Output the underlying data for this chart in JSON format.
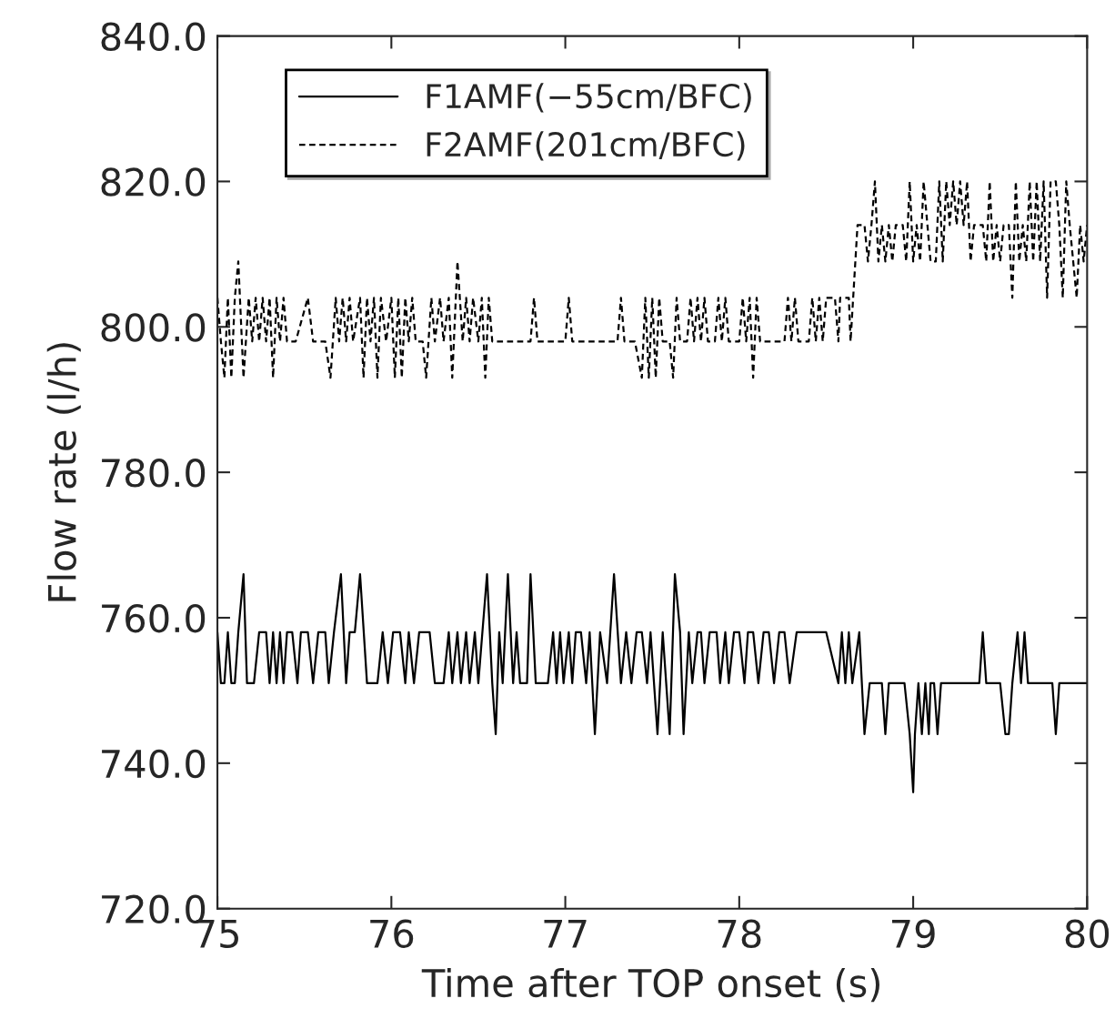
{
  "chart_data": {
    "type": "line",
    "xlabel": "Time after TOP onset (s)",
    "ylabel": "Flow rate (l/h)",
    "xlim": [
      75,
      80
    ],
    "xticks": [
      75,
      76,
      77,
      78,
      79,
      80
    ],
    "ylim": [
      720,
      840
    ],
    "yticks": [
      {
        "value": 720,
        "label": "720.0"
      },
      {
        "value": 740,
        "label": "740.0"
      },
      {
        "value": 760,
        "label": "760.0"
      },
      {
        "value": 780,
        "label": "780.0"
      },
      {
        "value": 800,
        "label": "800.0"
      },
      {
        "value": 820,
        "label": "820.0"
      },
      {
        "value": 840,
        "label": "840.0"
      }
    ],
    "grid": false,
    "legend": "top left",
    "series": [
      {
        "name": "F1AMF(−55cm/BFC)",
        "color": "#000000",
        "line_style": "solid",
        "x": [
          75.0,
          75.02,
          75.04,
          75.06,
          75.08,
          75.1,
          75.12,
          75.15,
          75.17,
          75.21,
          75.24,
          75.28,
          75.3,
          75.32,
          75.34,
          75.36,
          75.38,
          75.4,
          75.43,
          75.46,
          75.48,
          75.52,
          75.55,
          75.58,
          75.62,
          75.64,
          75.67,
          75.71,
          75.74,
          75.76,
          75.79,
          75.82,
          75.86,
          75.92,
          75.95,
          75.98,
          76.01,
          76.05,
          76.08,
          76.1,
          76.13,
          76.16,
          76.22,
          76.25,
          76.3,
          76.33,
          76.35,
          76.38,
          76.4,
          76.43,
          76.45,
          76.48,
          76.5,
          76.55,
          76.58,
          76.6,
          76.62,
          76.64,
          76.67,
          76.7,
          76.72,
          76.74,
          76.78,
          76.8,
          76.83,
          76.9,
          76.93,
          76.95,
          76.97,
          76.99,
          77.02,
          77.04,
          77.06,
          77.09,
          77.12,
          77.14,
          77.17,
          77.2,
          77.24,
          77.28,
          77.32,
          77.35,
          77.38,
          77.41,
          77.44,
          77.47,
          77.49,
          77.53,
          77.56,
          77.6,
          77.63,
          77.66,
          77.68,
          77.71,
          77.73,
          77.76,
          77.78,
          77.8,
          77.83,
          77.87,
          77.89,
          77.92,
          77.94,
          77.97,
          78.0,
          78.03,
          78.05,
          78.08,
          78.11,
          78.14,
          78.17,
          78.2,
          78.23,
          78.26,
          78.29,
          78.33,
          78.5,
          78.57,
          78.59,
          78.61,
          78.63,
          78.65,
          78.69,
          78.72,
          78.75,
          78.82,
          78.84,
          78.86,
          78.95,
          78.98,
          79.0,
          79.01,
          79.03,
          79.05,
          79.07,
          79.09,
          79.1,
          79.12,
          79.14,
          79.16,
          79.38,
          79.4,
          79.42,
          79.5,
          79.53,
          79.55,
          79.57,
          79.6,
          79.62,
          79.64,
          79.66,
          79.8,
          79.82,
          79.84,
          80.0
        ],
        "values": [
          758,
          751,
          751,
          758,
          751,
          751,
          758,
          766,
          751,
          751,
          758,
          758,
          751,
          758,
          751,
          758,
          751,
          758,
          758,
          751,
          758,
          758,
          751,
          758,
          758,
          751,
          758,
          766,
          751,
          758,
          758,
          766,
          751,
          751,
          758,
          751,
          758,
          758,
          751,
          758,
          751,
          758,
          758,
          751,
          751,
          758,
          751,
          758,
          751,
          758,
          751,
          758,
          751,
          766,
          751,
          744,
          758,
          751,
          766,
          751,
          758,
          751,
          751,
          766,
          751,
          751,
          758,
          751,
          758,
          751,
          758,
          751,
          758,
          758,
          751,
          758,
          744,
          758,
          751,
          766,
          751,
          758,
          751,
          758,
          758,
          751,
          758,
          744,
          758,
          744,
          766,
          758,
          744,
          758,
          751,
          758,
          758,
          751,
          758,
          758,
          751,
          758,
          751,
          758,
          758,
          751,
          758,
          758,
          751,
          758,
          758,
          751,
          758,
          758,
          751,
          758,
          758,
          751,
          758,
          751,
          758,
          751,
          758,
          744,
          751,
          751,
          744,
          751,
          751,
          744,
          736,
          744,
          751,
          744,
          751,
          744,
          751,
          751,
          744,
          751,
          751,
          758,
          751,
          751,
          744,
          744,
          751,
          758,
          751,
          758,
          751,
          751,
          744,
          751,
          751
        ]
      },
      {
        "name": "F2AMF(201cm/BFC)",
        "color": "#000000",
        "line_style": "dashed",
        "x": [
          75.0,
          75.02,
          75.04,
          75.06,
          75.08,
          75.1,
          75.12,
          75.15,
          75.18,
          75.2,
          75.22,
          75.24,
          75.26,
          75.28,
          75.3,
          75.32,
          75.34,
          75.36,
          75.38,
          75.4,
          75.45,
          75.52,
          75.55,
          75.62,
          75.65,
          75.68,
          75.7,
          75.72,
          75.74,
          75.76,
          75.78,
          75.82,
          75.84,
          75.86,
          75.88,
          75.9,
          75.92,
          75.94,
          75.97,
          76.0,
          76.02,
          76.04,
          76.06,
          76.08,
          76.1,
          76.12,
          76.14,
          76.18,
          76.2,
          76.23,
          76.25,
          76.28,
          76.3,
          76.33,
          76.35,
          76.38,
          76.41,
          76.43,
          76.45,
          76.47,
          76.5,
          76.52,
          76.54,
          76.56,
          76.58,
          76.8,
          76.82,
          76.84,
          77.0,
          77.02,
          77.04,
          77.3,
          77.32,
          77.34,
          77.4,
          77.44,
          77.46,
          77.48,
          77.5,
          77.52,
          77.54,
          77.56,
          77.6,
          77.62,
          77.64,
          77.66,
          77.7,
          77.72,
          77.74,
          77.76,
          77.78,
          77.8,
          77.82,
          77.86,
          77.88,
          77.9,
          77.92,
          77.94,
          78.0,
          78.02,
          78.04,
          78.06,
          78.08,
          78.1,
          78.12,
          78.26,
          78.28,
          78.3,
          78.32,
          78.34,
          78.4,
          78.42,
          78.44,
          78.46,
          78.48,
          78.5,
          78.55,
          78.57,
          78.58,
          78.63,
          78.64,
          78.68,
          78.72,
          78.74,
          78.76,
          78.78,
          78.8,
          78.82,
          78.84,
          78.86,
          78.88,
          78.9,
          78.94,
          78.96,
          78.98,
          79.0,
          79.02,
          79.04,
          79.06,
          79.1,
          79.13,
          79.15,
          79.17,
          79.19,
          79.21,
          79.23,
          79.25,
          79.27,
          79.29,
          79.31,
          79.33,
          79.35,
          79.4,
          79.42,
          79.44,
          79.46,
          79.48,
          79.5,
          79.52,
          79.55,
          79.57,
          79.59,
          79.61,
          79.63,
          79.65,
          79.67,
          79.69,
          79.71,
          79.73,
          79.75,
          79.77,
          79.79,
          79.82,
          79.84,
          79.86,
          79.88,
          79.9,
          79.92,
          79.94,
          79.96,
          79.98,
          80.0
        ],
        "values": [
          804,
          798,
          793,
          804,
          793,
          804,
          809,
          793,
          804,
          798,
          804,
          798,
          804,
          798,
          804,
          793,
          804,
          798,
          804,
          798,
          798,
          804,
          798,
          798,
          793,
          804,
          798,
          804,
          798,
          804,
          798,
          804,
          793,
          804,
          798,
          804,
          793,
          804,
          798,
          804,
          793,
          804,
          793,
          804,
          798,
          804,
          798,
          798,
          793,
          804,
          798,
          804,
          798,
          804,
          793,
          809,
          798,
          804,
          798,
          804,
          798,
          804,
          793,
          804,
          798,
          798,
          804,
          798,
          798,
          804,
          798,
          798,
          804,
          798,
          798,
          793,
          804,
          793,
          804,
          793,
          804,
          798,
          798,
          793,
          804,
          798,
          798,
          804,
          798,
          804,
          798,
          804,
          798,
          798,
          804,
          798,
          804,
          798,
          798,
          804,
          798,
          804,
          793,
          804,
          798,
          798,
          804,
          798,
          804,
          798,
          798,
          804,
          798,
          804,
          798,
          804,
          804,
          798,
          804,
          804,
          798,
          814,
          814,
          809,
          814,
          820,
          809,
          814,
          809,
          814,
          809,
          814,
          814,
          809,
          820,
          809,
          814,
          809,
          820,
          809,
          809,
          820,
          809,
          820,
          814,
          820,
          814,
          820,
          814,
          820,
          809,
          814,
          814,
          809,
          820,
          809,
          814,
          809,
          814,
          814,
          804,
          820,
          809,
          814,
          809,
          820,
          809,
          820,
          809,
          820,
          804,
          820,
          820,
          814,
          804,
          820,
          814,
          809,
          804,
          814,
          809,
          814
        ]
      }
    ]
  }
}
